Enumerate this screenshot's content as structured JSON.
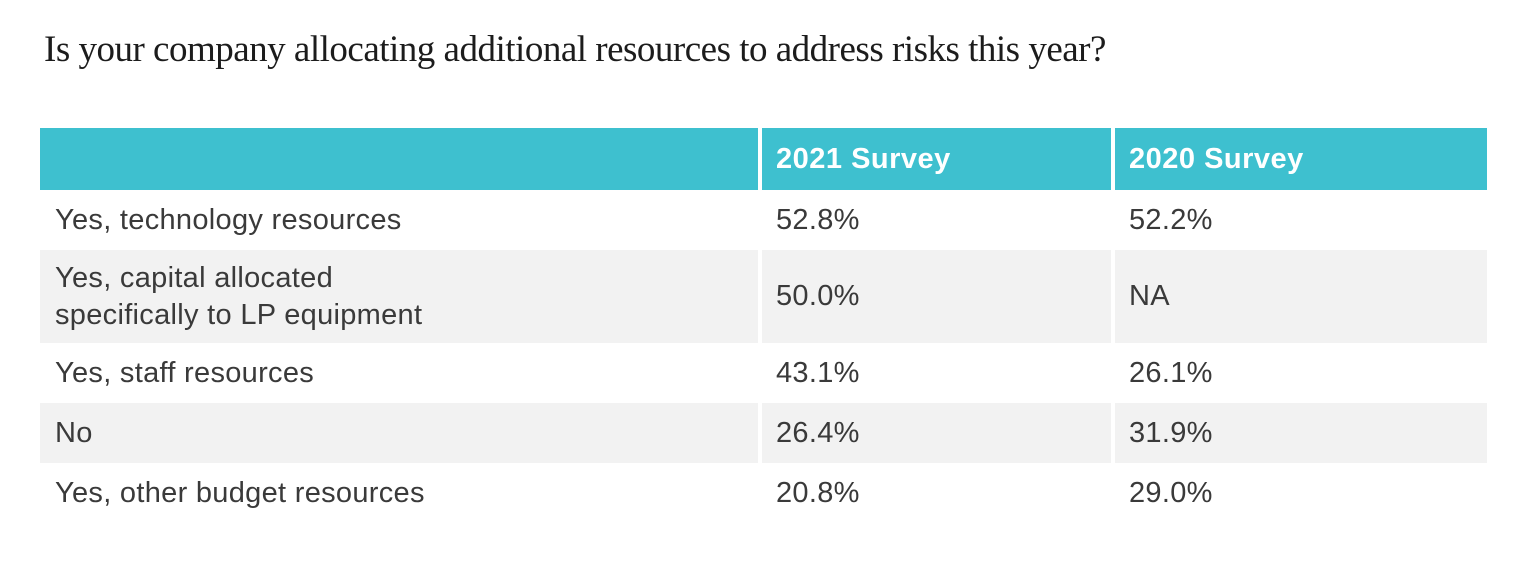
{
  "title": "Is your company allocating additional resources to address risks this year?",
  "colors": {
    "header_bg": "#3EC0CF",
    "header_text": "#FFFFFF",
    "alt_row_bg": "#F2F2F2",
    "body_text": "#3A3A3A"
  },
  "table": {
    "header": {
      "label_col": "",
      "col_2021": "2021 Survey",
      "col_2020": "2020 Survey"
    },
    "rows": [
      {
        "label": "Yes, technology resources",
        "v2021": "52.8%",
        "v2020": "52.2%"
      },
      {
        "label": "Yes, capital allocated\nspecifically to LP equipment",
        "v2021": "50.0%",
        "v2020": "NA"
      },
      {
        "label": "Yes, staff resources",
        "v2021": "43.1%",
        "v2020": "26.1%"
      },
      {
        "label": "No",
        "v2021": "26.4%",
        "v2020": "31.9%"
      },
      {
        "label": "Yes, other budget resources",
        "v2021": "20.8%",
        "v2020": "29.0%"
      }
    ]
  },
  "chart_data": {
    "type": "table",
    "title": "Is your company allocating additional resources to address risks this year?",
    "categories": [
      "Yes, technology resources",
      "Yes, capital allocated specifically to LP equipment",
      "Yes, staff resources",
      "No",
      "Yes, other budget resources"
    ],
    "series": [
      {
        "name": "2021 Survey",
        "values": [
          52.8,
          50.0,
          43.1,
          26.4,
          20.8
        ],
        "unit": "%"
      },
      {
        "name": "2020 Survey",
        "values": [
          52.2,
          null,
          26.1,
          31.9,
          29.0
        ],
        "unit": "%",
        "missing_label": "NA"
      }
    ],
    "layout": {
      "header_position": "top",
      "alternating_rows": true
    }
  }
}
